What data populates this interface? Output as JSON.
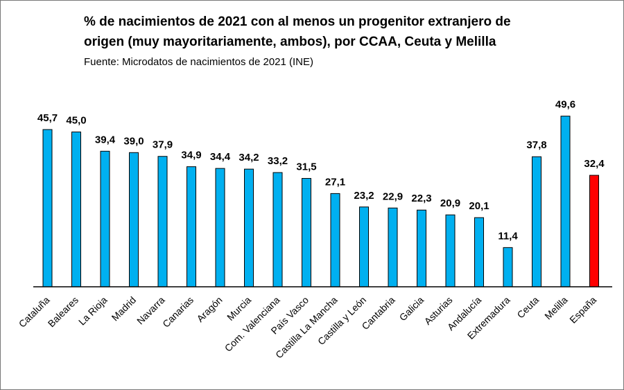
{
  "chart_data": {
    "type": "bar",
    "title_line1": "% de nacimientos de 2021 con al menos un progenitor extranjero de",
    "title_line2": "origen (muy mayoritariamente, ambos), por CCAA, Ceuta y Melilla",
    "subtitle": "Fuente: Microdatos de nacimientos de 2021 (INE)",
    "categories": [
      "Cataluña",
      "Baleares",
      "La Rioja",
      "Madrid",
      "Navarra",
      "Canarias",
      "Aragón",
      "Murcia",
      "Com. Valenciana",
      "País Vasco",
      "Castilla La Mancha",
      "Castilla y León",
      "Cantabria",
      "Galicia",
      "Asturias",
      "Andalucía",
      "Extremadura",
      "Ceuta",
      "Melilla",
      "España"
    ],
    "values": [
      45.7,
      45.0,
      39.4,
      39.0,
      37.9,
      34.9,
      34.4,
      34.2,
      33.2,
      31.5,
      27.1,
      23.2,
      22.9,
      22.3,
      20.9,
      20.1,
      11.4,
      37.8,
      49.6,
      32.4
    ],
    "data_labels": [
      "45,7",
      "45,0",
      "39,4",
      "39,0",
      "37,9",
      "34,9",
      "34,4",
      "34,2",
      "33,2",
      "31,5",
      "27,1",
      "23,2",
      "22,9",
      "22,3",
      "20,9",
      "20,1",
      "11,4",
      "37,8",
      "49,6",
      "32,4"
    ],
    "ylim": [
      0,
      50
    ],
    "grid": false,
    "bar_color": "#00B0F0",
    "highlight_color": "#FF0000",
    "highlight_category": "España"
  }
}
